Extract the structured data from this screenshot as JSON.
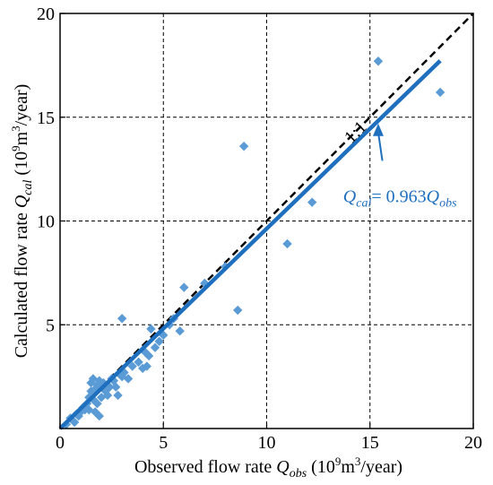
{
  "chart_data": {
    "type": "scatter",
    "title": "",
    "xlabel": {
      "prefix": "Observed flow rate ",
      "var": "Q",
      "sub": "obs",
      "units_open": " (10",
      "units_exp": "9",
      "units_mid": "m",
      "units_exp2": "3",
      "units_close": "/year)"
    },
    "ylabel": {
      "prefix": "Calculated flow rate ",
      "var": "Q",
      "sub": "cal",
      "units_open": " (10",
      "units_exp": "9",
      "units_mid": "m",
      "units_exp2": "3",
      "units_close": "/year)"
    },
    "xlim": [
      0,
      20
    ],
    "ylim": [
      0,
      20
    ],
    "xticks": [
      0,
      5,
      10,
      15,
      20
    ],
    "yticks": [
      5,
      10,
      15,
      20
    ],
    "grid": true,
    "marker_color": "#5b9bd5",
    "fit_color": "#1f6fbf",
    "ref_color": "#000000",
    "reference_line": {
      "label": "1:1",
      "slope": 1,
      "range": [
        0,
        20
      ]
    },
    "fit_line": {
      "slope": 0.963,
      "range": [
        0,
        18.4
      ],
      "label": {
        "lhs_var": "Q",
        "lhs_sub": "cal",
        "eq": "= 0.963",
        "rhs_var": "Q",
        "rhs_sub": "obs"
      },
      "arrow_from": [
        15.6,
        12.9
      ],
      "arrow_to": [
        15.4,
        14.7
      ]
    },
    "points": [
      [
        0.3,
        0.2
      ],
      [
        0.5,
        0.5
      ],
      [
        0.7,
        0.3
      ],
      [
        0.8,
        0.7
      ],
      [
        0.9,
        0.6
      ],
      [
        1.0,
        0.8
      ],
      [
        1.1,
        1.0
      ],
      [
        1.2,
        0.9
      ],
      [
        1.3,
        1.2
      ],
      [
        1.4,
        1.5
      ],
      [
        1.4,
        0.9
      ],
      [
        1.5,
        1.8
      ],
      [
        1.5,
        2.2
      ],
      [
        1.6,
        2.4
      ],
      [
        1.6,
        1.4
      ],
      [
        1.7,
        0.8
      ],
      [
        1.7,
        1.9
      ],
      [
        1.8,
        2.1
      ],
      [
        1.8,
        1.2
      ],
      [
        1.9,
        2.3
      ],
      [
        1.9,
        0.6
      ],
      [
        2.0,
        1.5
      ],
      [
        2.0,
        2.0
      ],
      [
        2.1,
        2.2
      ],
      [
        2.2,
        1.8
      ],
      [
        2.3,
        1.6
      ],
      [
        2.4,
        2.0
      ],
      [
        2.5,
        2.4
      ],
      [
        2.6,
        2.3
      ],
      [
        2.7,
        2.0
      ],
      [
        2.8,
        1.6
      ],
      [
        2.9,
        2.6
      ],
      [
        3.0,
        2.5
      ],
      [
        3.1,
        2.7
      ],
      [
        3.0,
        5.3
      ],
      [
        3.3,
        2.4
      ],
      [
        3.5,
        3.0
      ],
      [
        3.8,
        3.2
      ],
      [
        4.0,
        2.9
      ],
      [
        4.1,
        3.7
      ],
      [
        4.2,
        3.0
      ],
      [
        4.3,
        3.5
      ],
      [
        4.4,
        4.8
      ],
      [
        4.6,
        3.9
      ],
      [
        4.8,
        4.2
      ],
      [
        5.0,
        4.5
      ],
      [
        5.3,
        5.0
      ],
      [
        5.5,
        5.3
      ],
      [
        5.8,
        4.7
      ],
      [
        6.0,
        6.8
      ],
      [
        7.0,
        7.0
      ],
      [
        8.0,
        7.8
      ],
      [
        8.6,
        5.7
      ],
      [
        8.9,
        13.6
      ],
      [
        11.0,
        8.9
      ],
      [
        12.2,
        10.9
      ],
      [
        15.4,
        17.7
      ],
      [
        18.4,
        16.2
      ]
    ]
  }
}
